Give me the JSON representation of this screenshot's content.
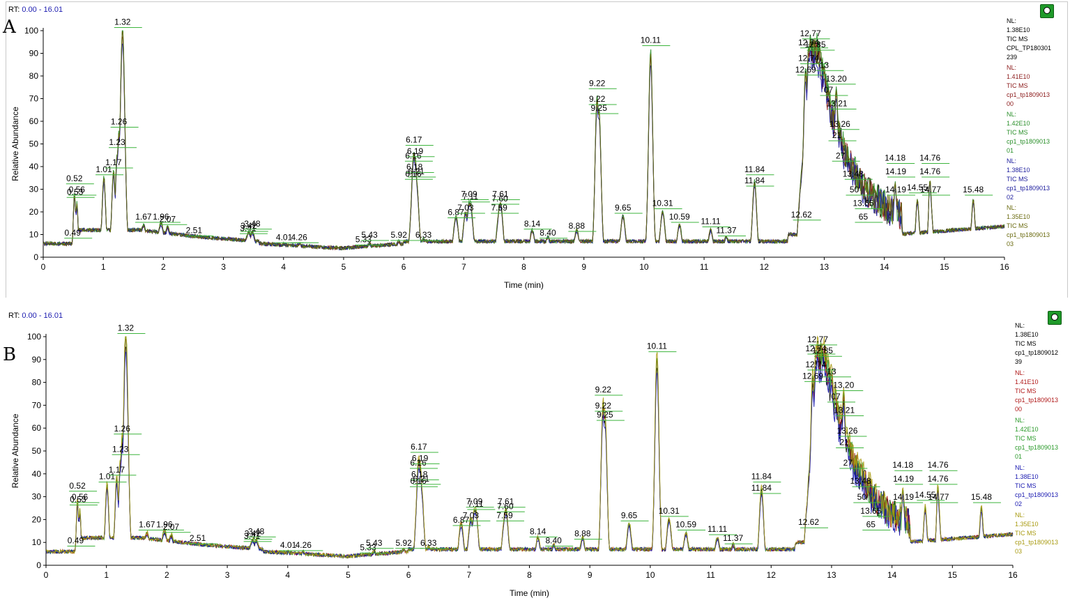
{
  "chart_data": [
    {
      "id": "A",
      "type": "line",
      "panel_label": "A",
      "rt_prefix": "RT:",
      "rt_range": "0.00 - 16.01",
      "xlabel": "Time (min)",
      "ylabel": "Relative Abundance",
      "xlim": [
        0,
        16
      ],
      "ylim": [
        0,
        100
      ],
      "x_ticks": [
        "0",
        "1",
        "2",
        "3",
        "4",
        "5",
        "6",
        "7",
        "8",
        "9",
        "10",
        "11",
        "12",
        "13",
        "14",
        "15",
        "16"
      ],
      "y_ticks": [
        "0",
        "10",
        "20",
        "30",
        "40",
        "50",
        "60",
        "70",
        "80",
        "90",
        "100"
      ],
      "series": [
        {
          "color": "#000000",
          "scale": 1.0
        },
        {
          "color": "#8b1a1a",
          "scale": 0.98
        },
        {
          "color": "#2a8f2a",
          "scale": 1.02
        },
        {
          "color": "#1a1a9c",
          "scale": 0.95
        },
        {
          "color": "#6b6b10",
          "scale": 1.0
        }
      ],
      "peaks": [
        {
          "rt": 0.49,
          "pct": 6,
          "s": 0.02,
          "label": "0.49",
          "ly": 9
        },
        {
          "rt": 0.52,
          "pct": 28,
          "s": 0.02,
          "label": "0.52",
          "ly": 33
        },
        {
          "rt": 0.53,
          "pct": 22,
          "s": 0.02,
          "label": "0.53",
          "ly": 27
        },
        {
          "rt": 0.56,
          "pct": 24,
          "s": 0.02,
          "label": "0.56",
          "ly": 28
        },
        {
          "rt": 1.01,
          "pct": 35,
          "s": 0.03,
          "label": "1.01",
          "ly": 37
        },
        {
          "rt": 1.17,
          "pct": 38,
          "s": 0.03,
          "label": "1.17",
          "ly": 40
        },
        {
          "rt": 1.23,
          "pct": 45,
          "s": 0.03,
          "label": "1.23",
          "ly": 49
        },
        {
          "rt": 1.26,
          "pct": 55,
          "s": 0.03,
          "label": "1.26",
          "ly": 58
        },
        {
          "rt": 1.32,
          "pct": 100,
          "s": 0.04,
          "label": "1.32",
          "ly": 102
        },
        {
          "rt": 1.67,
          "pct": 14,
          "s": 0.05,
          "label": "1.67",
          "ly": 16
        },
        {
          "rt": 1.96,
          "pct": 15,
          "s": 0.05,
          "label": "1.96",
          "ly": 16
        },
        {
          "rt": 2.07,
          "pct": 13,
          "s": 0.05,
          "label": "2.07",
          "ly": 15
        },
        {
          "rt": 2.51,
          "pct": 9,
          "s": 0.05,
          "label": "2.51",
          "ly": 10
        },
        {
          "rt": 3.41,
          "pct": 10,
          "s": 0.05,
          "label": "3.41",
          "ly": 11
        },
        {
          "rt": 3.48,
          "pct": 11,
          "s": 0.05,
          "label": "3.48",
          "ly": 13
        },
        {
          "rt": 3.42,
          "pct": 11,
          "s": 0.05,
          "label": "3.42",
          "ly": 12
        },
        {
          "rt": 4.01,
          "pct": 6,
          "s": 0.05,
          "label": "4.01",
          "ly": 7
        },
        {
          "rt": 4.26,
          "pct": 6,
          "s": 0.05,
          "label": "4.26",
          "ly": 7
        },
        {
          "rt": 5.33,
          "pct": 5,
          "s": 0.05,
          "label": "5.33",
          "ly": 6
        },
        {
          "rt": 5.43,
          "pct": 6,
          "s": 0.05,
          "label": "5.43",
          "ly": 8
        },
        {
          "rt": 5.92,
          "pct": 7,
          "s": 0.05,
          "label": "5.92",
          "ly": 8
        },
        {
          "rt": 6.16,
          "pct": 36,
          "s": 0.04,
          "label": "6.16",
          "ly": 43
        },
        {
          "rt": 6.16,
          "pct": 32,
          "s": 0.04,
          "label": "6.16",
          "ly": 35
        },
        {
          "rt": 6.17,
          "pct": 46,
          "s": 0.04,
          "label": "6.17",
          "ly": 50
        },
        {
          "rt": 6.19,
          "pct": 43,
          "s": 0.04,
          "label": "6.19",
          "ly": 45
        },
        {
          "rt": 6.18,
          "pct": 36,
          "s": 0.04,
          "label": "6.18",
          "ly": 38
        },
        {
          "rt": 6.21,
          "pct": 34,
          "s": 0.04,
          "label": "6.21",
          "ly": 36
        },
        {
          "rt": 6.33,
          "pct": 8,
          "s": 0.04,
          "label": "6.33",
          "ly": 8
        },
        {
          "rt": 6.87,
          "pct": 18,
          "s": 0.04,
          "label": "6.87",
          "ly": 18
        },
        {
          "rt": 7.03,
          "pct": 20,
          "s": 0.04,
          "label": "7.03",
          "ly": 20
        },
        {
          "rt": 7.09,
          "pct": 24,
          "s": 0.04,
          "label": "7.09",
          "ly": 26
        },
        {
          "rt": 7.11,
          "pct": 24,
          "s": 0.04,
          "label": "7.11",
          "ly": 25
        },
        {
          "rt": 7.59,
          "pct": 20,
          "s": 0.04,
          "label": "7.59",
          "ly": 20
        },
        {
          "rt": 7.61,
          "pct": 24,
          "s": 0.04,
          "label": "7.61",
          "ly": 26
        },
        {
          "rt": 7.6,
          "pct": 23,
          "s": 0.04,
          "label": "7.60",
          "ly": 24
        },
        {
          "rt": 8.14,
          "pct": 12,
          "s": 0.04,
          "label": "8.14",
          "ly": 13
        },
        {
          "rt": 8.4,
          "pct": 9,
          "s": 0.04,
          "label": "8.40",
          "ly": 9
        },
        {
          "rt": 8.88,
          "pct": 12,
          "s": 0.04,
          "label": "8.88",
          "ly": 12
        },
        {
          "rt": 9.22,
          "pct": 70,
          "s": 0.035,
          "label": "9.22",
          "ly": 75
        },
        {
          "rt": 9.22,
          "pct": 68,
          "s": 0.035,
          "label": "9.22",
          "ly": 68
        },
        {
          "rt": 9.25,
          "pct": 65,
          "s": 0.035,
          "label": "9.25",
          "ly": 64
        },
        {
          "rt": 9.65,
          "pct": 18,
          "s": 0.04,
          "label": "9.65",
          "ly": 20
        },
        {
          "rt": 10.11,
          "pct": 90,
          "s": 0.035,
          "label": "10.11",
          "ly": 94
        },
        {
          "rt": 10.31,
          "pct": 20,
          "s": 0.04,
          "label": "10.31",
          "ly": 22
        },
        {
          "rt": 10.59,
          "pct": 14,
          "s": 0.04,
          "label": "10.59",
          "ly": 16
        },
        {
          "rt": 11.11,
          "pct": 12,
          "s": 0.04,
          "label": "11.11",
          "ly": 14
        },
        {
          "rt": 11.37,
          "pct": 9,
          "s": 0.04,
          "label": "11.37",
          "ly": 10
        },
        {
          "rt": 11.84,
          "pct": 33,
          "s": 0.035,
          "label": "11.84",
          "ly": 37
        },
        {
          "rt": 11.84,
          "pct": 30,
          "s": 0.035,
          "label": "11.84",
          "ly": 32
        },
        {
          "rt": 12.62,
          "pct": 16,
          "s": 0.04,
          "label": "12.62",
          "ly": 17
        },
        {
          "rt": 12.69,
          "pct": 82,
          "s": 0.04,
          "label": "12.69",
          "ly": 81
        },
        {
          "rt": 12.74,
          "pct": 92,
          "s": 0.04,
          "label": "12.74",
          "ly": 93
        },
        {
          "rt": 12.74,
          "pct": 86,
          "s": 0.04,
          "label": "12.74",
          "ly": 86
        },
        {
          "rt": 12.77,
          "pct": 97,
          "s": 0.04,
          "label": "12.77",
          "ly": 97
        },
        {
          "rt": 12.85,
          "pct": 93,
          "s": 0.04,
          "label": "12.85",
          "ly": 92
        },
        {
          "rt": 13.0,
          "pct": 84,
          "s": 0.04,
          "label": "13",
          "ly": 83
        },
        {
          "rt": 13.07,
          "pct": 74,
          "s": 0.04,
          "label": "07",
          "ly": 72
        },
        {
          "rt": 13.2,
          "pct": 74,
          "s": 0.04,
          "label": "13.20",
          "ly": 77
        },
        {
          "rt": 13.21,
          "pct": 65,
          "s": 0.04,
          "label": "13.21",
          "ly": 66
        },
        {
          "rt": 13.26,
          "pct": 55,
          "s": 0.04,
          "label": "13.26",
          "ly": 57
        },
        {
          "rt": 13.21,
          "pct": 50,
          "s": 0.04,
          "label": "21",
          "ly": 52
        },
        {
          "rt": 13.27,
          "pct": 42,
          "s": 0.04,
          "label": "27",
          "ly": 43
        },
        {
          "rt": 13.48,
          "pct": 34,
          "s": 0.04,
          "label": "13.48",
          "ly": 35
        },
        {
          "rt": 13.5,
          "pct": 27,
          "s": 0.04,
          "label": "50",
          "ly": 28
        },
        {
          "rt": 13.65,
          "pct": 22,
          "s": 0.04,
          "label": "13.65",
          "ly": 22
        },
        {
          "rt": 13.65,
          "pct": 17,
          "s": 0.04,
          "label": "65",
          "ly": 16
        },
        {
          "rt": 14.18,
          "pct": 33,
          "s": 0.025,
          "label": "14.18",
          "ly": 42
        },
        {
          "rt": 14.19,
          "pct": 28,
          "s": 0.025,
          "label": "14.19",
          "ly": 36
        },
        {
          "rt": 14.19,
          "pct": 26,
          "s": 0.025,
          "label": "14.19",
          "ly": 28
        },
        {
          "rt": 14.55,
          "pct": 25,
          "s": 0.03,
          "label": "14.55",
          "ly": 29
        },
        {
          "rt": 14.76,
          "pct": 34,
          "s": 0.025,
          "label": "14.76",
          "ly": 42
        },
        {
          "rt": 14.76,
          "pct": 30,
          "s": 0.025,
          "label": "14.76",
          "ly": 36
        },
        {
          "rt": 14.77,
          "pct": 26,
          "s": 0.03,
          "label": "14.77",
          "ly": 28
        },
        {
          "rt": 15.48,
          "pct": 25,
          "s": 0.03,
          "label": "15.48",
          "ly": 28
        }
      ],
      "legend": [
        {
          "color": "#000000",
          "lines": [
            "NL:",
            "1.38E10",
            "TIC MS",
            "CPL_TP180301",
            "239"
          ]
        },
        {
          "color": "#8b1a1a",
          "lines": [
            "NL:",
            "1.41E10",
            "TIC MS",
            "cp1_tp1809013",
            "00"
          ]
        },
        {
          "color": "#2a8f2a",
          "lines": [
            "NL:",
            "1.42E10",
            "TIC MS",
            "cp1_tp1809013",
            "01"
          ]
        },
        {
          "color": "#1a1a9c",
          "lines": [
            "NL:",
            "1.38E10",
            "TIC MS",
            "cp1_tp1809013",
            "02"
          ]
        },
        {
          "color": "#6b6b10",
          "lines": [
            "NL:",
            "1.35E10",
            "TIC MS",
            "cp1_tp1809013",
            "03"
          ]
        }
      ]
    },
    {
      "id": "B",
      "type": "line",
      "panel_label": "B",
      "rt_prefix": "RT:",
      "rt_range": "0.00 - 16.01",
      "xlabel": "Time (min)",
      "ylabel": "Relative Abundance",
      "xlim": [
        0,
        16
      ],
      "ylim": [
        0,
        100
      ],
      "x_ticks": [
        "0",
        "1",
        "2",
        "3",
        "4",
        "5",
        "6",
        "7",
        "8",
        "9",
        "10",
        "11",
        "12",
        "13",
        "14",
        "15",
        "16"
      ],
      "y_ticks": [
        "0",
        "10",
        "20",
        "30",
        "40",
        "50",
        "60",
        "70",
        "80",
        "90",
        "100"
      ],
      "series": [
        {
          "color": "#000000",
          "scale": 0.97
        },
        {
          "color": "#b01818",
          "scale": 1.0
        },
        {
          "color": "#2a9a2a",
          "scale": 1.02
        },
        {
          "color": "#1818b0",
          "scale": 0.94
        },
        {
          "color": "#a89a10",
          "scale": 1.05
        }
      ],
      "peaks": "same_as_A",
      "legend": [
        {
          "color": "#000000",
          "lines": [
            "NL:",
            "1.38E10",
            "TIC MS",
            "cp1_tp1809012",
            "39"
          ]
        },
        {
          "color": "#b01818",
          "lines": [
            "NL:",
            "1.41E10",
            "TIC MS",
            "cp1_tp1809013",
            "00"
          ]
        },
        {
          "color": "#2a9a2a",
          "lines": [
            "NL:",
            "1.42E10",
            "TIC MS",
            "cp1_tp1809013",
            "01"
          ]
        },
        {
          "color": "#1818b0",
          "lines": [
            "NL:",
            "1.38E10",
            "TIC MS",
            "cp1_tp1809013",
            "02"
          ]
        },
        {
          "color": "#a89a10",
          "lines": [
            "NL:",
            "1.35E10",
            "TIC MS",
            "cp1_tp1809013",
            "03"
          ]
        }
      ]
    }
  ]
}
